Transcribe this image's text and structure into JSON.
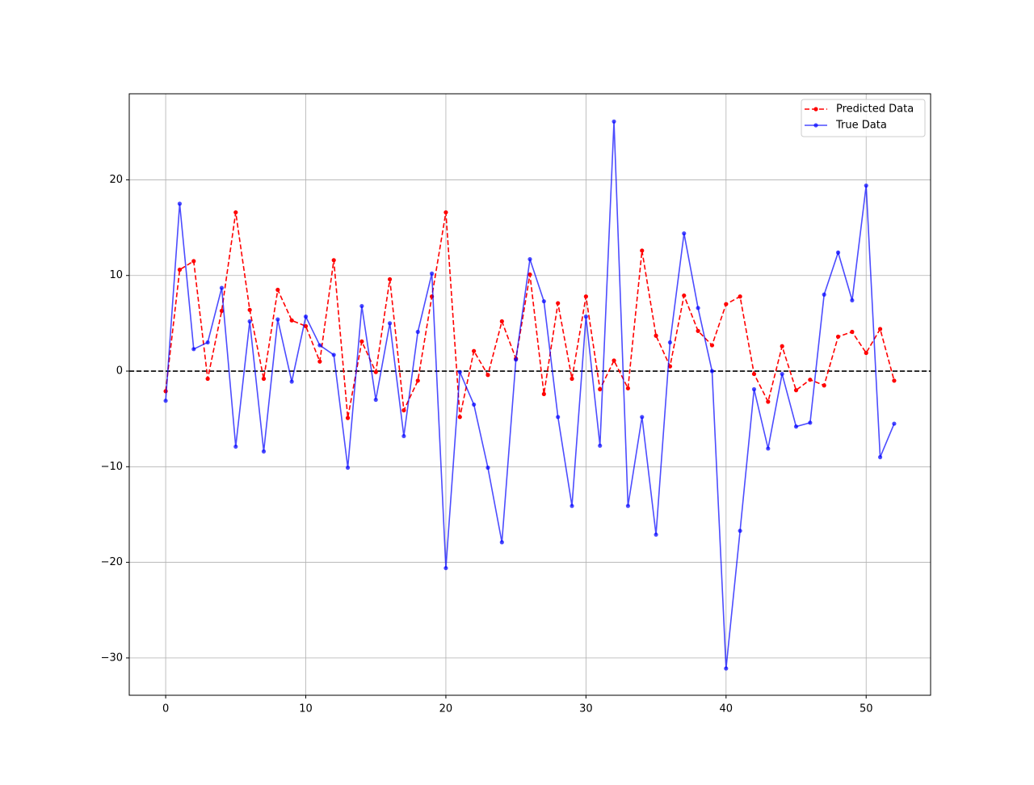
{
  "chart_data": {
    "type": "line",
    "x": [
      0,
      1,
      2,
      3,
      4,
      5,
      6,
      7,
      8,
      9,
      10,
      11,
      12,
      13,
      14,
      15,
      16,
      17,
      18,
      19,
      20,
      21,
      22,
      23,
      24,
      25,
      26,
      27,
      28,
      29,
      30,
      31,
      32,
      33,
      34,
      35,
      36,
      37,
      38,
      39,
      40,
      41,
      42,
      43,
      44,
      45,
      46,
      47,
      48,
      49,
      50,
      51,
      52
    ],
    "series": [
      {
        "name": "Predicted Data",
        "color": "#ff0000",
        "dash": true,
        "alpha": 1,
        "values": [
          -2.1,
          10.6,
          11.5,
          -0.8,
          6.3,
          16.6,
          6.4,
          -0.8,
          8.5,
          5.3,
          4.7,
          1.0,
          11.6,
          -4.9,
          3.1,
          -0.1,
          9.6,
          -4.1,
          -1.0,
          7.8,
          16.6,
          -4.8,
          2.1,
          -0.4,
          5.2,
          1.3,
          10.1,
          -2.4,
          7.1,
          -0.8,
          7.8,
          -1.9,
          1.1,
          -1.8,
          12.6,
          3.7,
          0.5,
          7.9,
          4.2,
          2.7,
          7.0,
          7.8,
          -0.3,
          -3.2,
          2.6,
          -2.0,
          -0.9,
          -1.5,
          3.6,
          4.1,
          1.9,
          4.4,
          -1.0
        ]
      },
      {
        "name": "True Data",
        "color": "#0000ff",
        "dash": false,
        "alpha": 0.7,
        "values": [
          -3.1,
          17.5,
          2.3,
          3.0,
          8.7,
          -7.9,
          5.2,
          -8.4,
          5.4,
          -1.1,
          5.7,
          2.7,
          1.7,
          -10.1,
          6.8,
          -3.0,
          5.0,
          -6.8,
          4.1,
          10.2,
          -20.6,
          -0.1,
          -3.5,
          -10.1,
          -17.9,
          1.2,
          11.7,
          7.3,
          -4.8,
          -14.1,
          5.7,
          -7.8,
          26.1,
          -14.1,
          -4.8,
          -17.1,
          3.0,
          14.4,
          6.6,
          0.0,
          -31.1,
          -16.7,
          -1.9,
          -8.1,
          -0.3,
          -5.8,
          -5.4,
          8.0,
          12.4,
          7.4,
          19.4,
          -9.0,
          -5.5
        ]
      }
    ],
    "hline": 0,
    "xlim": [
      -2.6,
      54.6
    ],
    "ylim": [
      -33.9,
      29.0
    ],
    "xticks": [
      0,
      10,
      20,
      30,
      40,
      50
    ],
    "yticks": [
      {
        "value": -30,
        "label": "−30"
      },
      {
        "value": -20,
        "label": "−20"
      },
      {
        "value": -10,
        "label": "−10"
      },
      0,
      10,
      20
    ],
    "grid": true,
    "legend": "upper right"
  }
}
